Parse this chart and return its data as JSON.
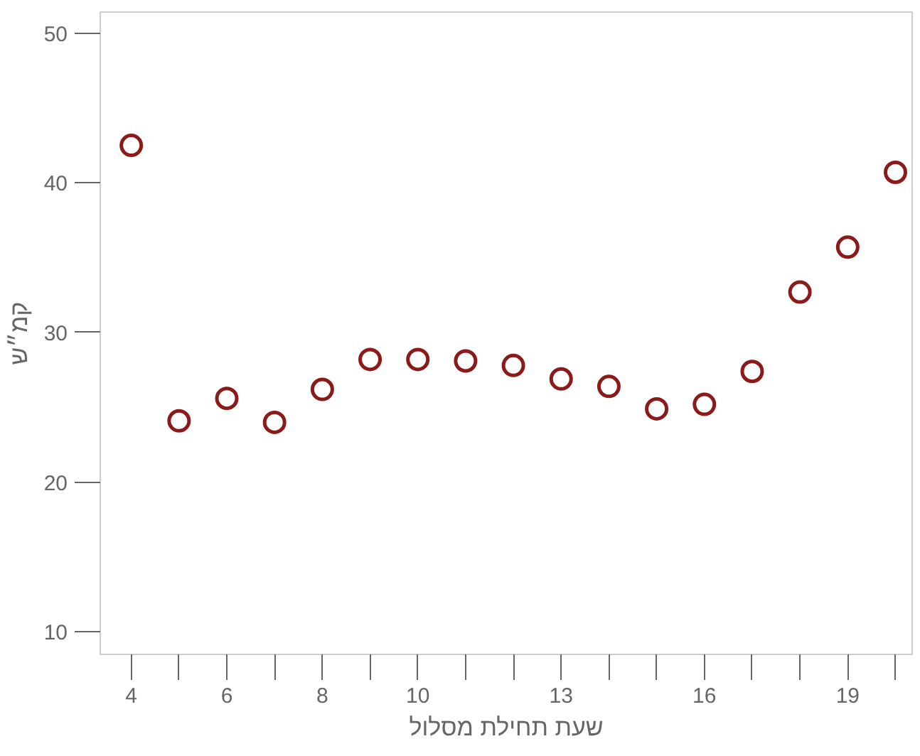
{
  "chart_data": {
    "type": "scatter",
    "xlabel": "שעת תחילת מסלול",
    "ylabel": "קמ״ש",
    "x": [
      4,
      5,
      6,
      7,
      8,
      9,
      10,
      11,
      12,
      13,
      14,
      15,
      16,
      17,
      18,
      19,
      20
    ],
    "series": [
      {
        "color": "#8b1a1a",
        "values": [
          42.5,
          24.1,
          25.6,
          24.0,
          26.2,
          28.2,
          28.2,
          28.1,
          27.8,
          26.9,
          26.4,
          24.9,
          25.2,
          27.4,
          32.7,
          35.7,
          40.7
        ]
      }
    ],
    "xlim": [
      3.35,
      20.35
    ],
    "ylim": [
      8.5,
      51.4
    ],
    "xticks": [
      4,
      6,
      8,
      10,
      13,
      16,
      19
    ],
    "yticks": [
      10,
      20,
      30,
      40,
      50
    ],
    "marker": "circle",
    "grid": false
  }
}
